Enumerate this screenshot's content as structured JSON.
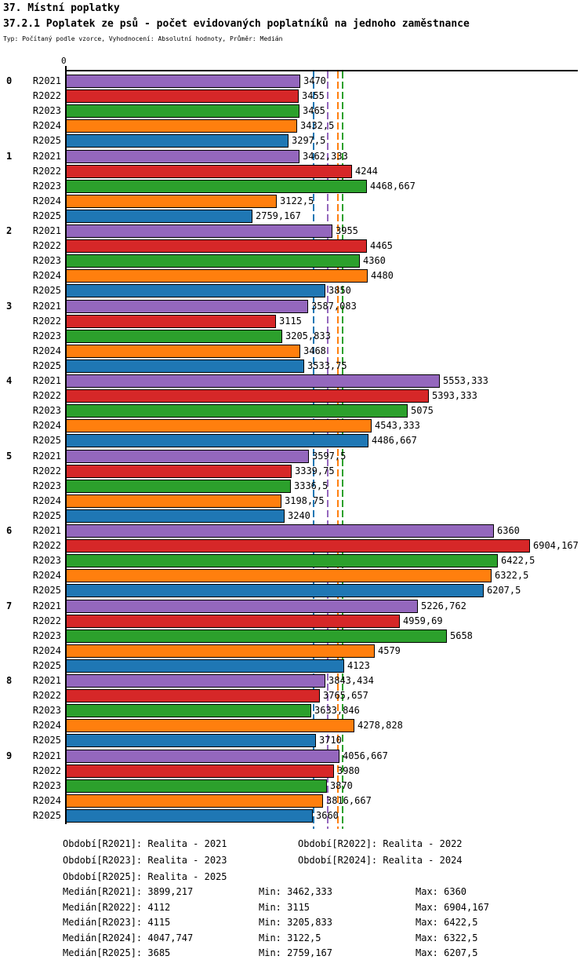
{
  "header": {
    "title": "37. Místní poplatky",
    "subtitle": "37.2.1 Poplatek ze psů - počet evidovaných poplatníků na jednoho zaměstnance",
    "meta": "Typ: Počítaný podle vzorce, Vyhodnocení: Absolutní hodnoty, Průměr: Medián"
  },
  "chart_data": {
    "type": "bar",
    "orientation": "horizontal",
    "value_axis": {
      "zero_label": "0",
      "min": 0
    },
    "grid": false,
    "median_lines_shown": true,
    "series": [
      {
        "name": "R2021",
        "color": "#9467bd",
        "median": "3899,217",
        "min": "3462,333",
        "max": "6360"
      },
      {
        "name": "R2022",
        "color": "#d62728",
        "median": "4112",
        "min": "3115",
        "max": "6904,167"
      },
      {
        "name": "R2023",
        "color": "#2ca02c",
        "median": "4115",
        "min": "3205,833",
        "max": "6422,5"
      },
      {
        "name": "R2024",
        "color": "#ff7f0e",
        "median": "4047,747",
        "min": "3122,5",
        "max": "6322,5"
      },
      {
        "name": "R2025",
        "color": "#1f77b4",
        "median": "3685",
        "min": "2759,167",
        "max": "6207,5"
      }
    ],
    "groups": [
      {
        "label": "0",
        "values": [
          "3470",
          "3455",
          "3465",
          "3432,5",
          "3297,5"
        ]
      },
      {
        "label": "1",
        "values": [
          "3462,333",
          "4244",
          "4468,667",
          "3122,5",
          "2759,167"
        ]
      },
      {
        "label": "2",
        "values": [
          "3955",
          "4465",
          "4360",
          "4480",
          "3850"
        ]
      },
      {
        "label": "3",
        "values": [
          "3587,083",
          "3115",
          "3205,833",
          "3468",
          "3533,75"
        ]
      },
      {
        "label": "4",
        "values": [
          "5553,333",
          "5393,333",
          "5075",
          "4543,333",
          "4486,667"
        ]
      },
      {
        "label": "5",
        "values": [
          "3597,5",
          "3339,75",
          "3336,5",
          "3198,75",
          "3240"
        ]
      },
      {
        "label": "6",
        "values": [
          "6360",
          "6904,167",
          "6422,5",
          "6322,5",
          "6207,5"
        ]
      },
      {
        "label": "7",
        "values": [
          "5226,762",
          "4959,69",
          "5658",
          "4579",
          "4123"
        ]
      },
      {
        "label": "8",
        "values": [
          "3843,434",
          "3765,657",
          "3633,846",
          "4278,828",
          "3710"
        ]
      },
      {
        "label": "9",
        "values": [
          "4056,667",
          "3980",
          "3870",
          "3816,667",
          "3660"
        ]
      }
    ]
  },
  "legend": {
    "period_prefix": "Období",
    "median_prefix": "Medián",
    "min_label": "Min:",
    "max_label": "Max:",
    "periods": [
      {
        "key": "R2021",
        "text": "Realita - 2021"
      },
      {
        "key": "R2022",
        "text": "Realita - 2022"
      },
      {
        "key": "R2023",
        "text": "Realita - 2023"
      },
      {
        "key": "R2024",
        "text": "Realita - 2024"
      },
      {
        "key": "R2025",
        "text": "Realita - 2025"
      }
    ]
  }
}
